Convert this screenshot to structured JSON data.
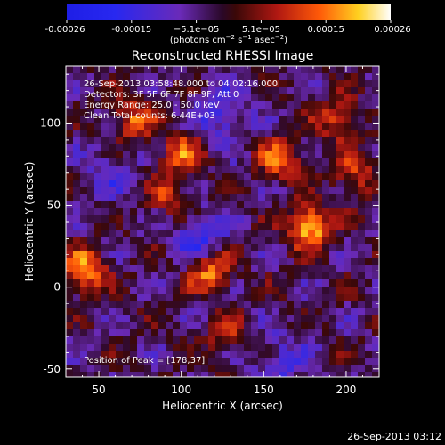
{
  "chart_data": {
    "type": "heatmap",
    "title": "Reconstructed RHESSI Image",
    "xlabel": "Heliocentric X (arcsec)",
    "ylabel": "Heliocentric Y (arcsec)",
    "xlim": [
      30,
      220
    ],
    "ylim": [
      -55,
      135
    ],
    "x_ticks": [
      50,
      100,
      150,
      200
    ],
    "y_ticks": [
      -50,
      0,
      50,
      100
    ],
    "colorbar": {
      "ticks": [
        "-0.00026",
        "-0.00015",
        "−5.1e−05",
        "5.1e−05",
        "0.00015",
        "0.00026"
      ],
      "vmin": -0.00026,
      "vmax": 0.00026,
      "unit_main": "(photons cm",
      "unit_sup1": "−2",
      "unit_mid": " s",
      "unit_sup2": "−1",
      "unit_mid2": " asec",
      "unit_sup3": "−2",
      "unit_end": ")"
    },
    "annotations": {
      "time_range": "26-Sep-2013 03:58:48.000 to 04:02:16.000",
      "detectors": "Detectors: 3F 5F 6F 7F 8F 9F, Att 0",
      "energy": "Energy Range: 25.0 - 50.0 keV",
      "clean": "Clean    Total counts: 6.44E+03",
      "peak": "Position of Peak = [178,37]"
    },
    "peak_position": [
      178,
      37
    ],
    "hotspots": [
      {
        "x": 178,
        "y": 37,
        "value": 0.00026
      },
      {
        "x": 118,
        "y": 10,
        "value": 0.00021
      },
      {
        "x": 42,
        "y": 10,
        "value": 0.00023
      },
      {
        "x": 100,
        "y": 82,
        "value": 0.00016
      },
      {
        "x": 160,
        "y": 78,
        "value": 0.00017
      },
      {
        "x": 70,
        "y": 102,
        "value": 0.00016
      },
      {
        "x": 195,
        "y": 102,
        "value": 0.00014
      },
      {
        "x": 205,
        "y": 68,
        "value": 0.00014
      },
      {
        "x": 92,
        "y": 55,
        "value": 0.00012
      },
      {
        "x": 128,
        "y": -30,
        "value": 0.0001
      }
    ],
    "coldspots": [
      {
        "x": 112,
        "y": 30,
        "value": -0.00015
      },
      {
        "x": 125,
        "y": 105,
        "value": -0.00012
      },
      {
        "x": 160,
        "y": -45,
        "value": -0.0001
      },
      {
        "x": 55,
        "y": 70,
        "value": -8e-05
      }
    ],
    "footer_timestamp": "26-Sep-2013 03:12"
  }
}
